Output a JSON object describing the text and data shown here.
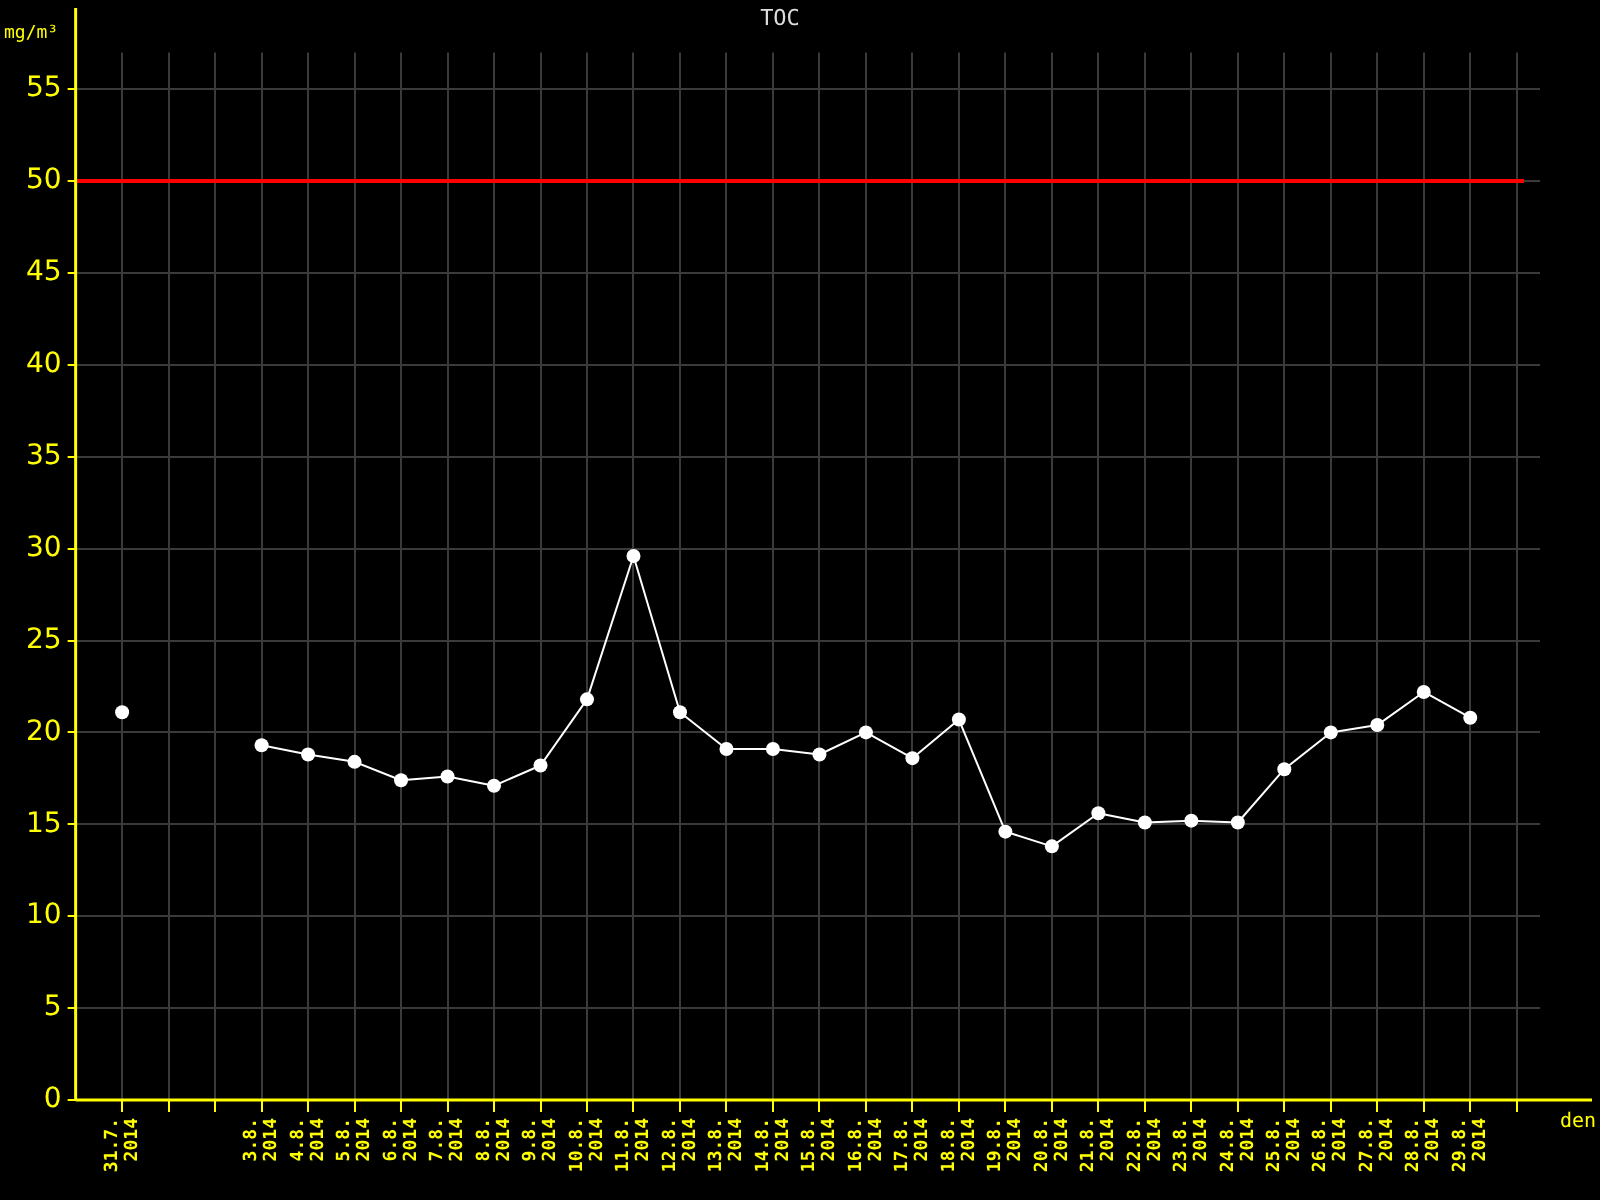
{
  "chart_data": {
    "type": "line",
    "title": "TOC",
    "xlabel": "den",
    "ylabel": "mg/m³",
    "x": [
      "2014-07-31",
      "2014-08-01",
      "2014-08-02",
      "2014-08-03",
      "2014-08-04",
      "2014-08-05",
      "2014-08-06",
      "2014-08-07",
      "2014-08-08",
      "2014-08-09",
      "2014-08-10",
      "2014-08-11",
      "2014-08-12",
      "2014-08-13",
      "2014-08-14",
      "2014-08-15",
      "2014-08-16",
      "2014-08-17",
      "2014-08-18",
      "2014-08-19",
      "2014-08-20",
      "2014-08-21",
      "2014-08-22",
      "2014-08-23",
      "2014-08-24",
      "2014-08-25",
      "2014-08-26",
      "2014-08-27",
      "2014-08-28",
      "2014-08-29"
    ],
    "series": [
      {
        "color": "#ffffff",
        "values": [
          21.1,
          null,
          null,
          19.3,
          18.8,
          18.4,
          17.4,
          17.6,
          17.1,
          18.2,
          21.8,
          29.6,
          21.1,
          19.1,
          19.1,
          18.8,
          20.0,
          18.6,
          20.7,
          14.6,
          13.8,
          15.6,
          15.1,
          15.2,
          15.1,
          18.0,
          20.0,
          20.4,
          22.2,
          20.8
        ]
      }
    ],
    "marker": "circle",
    "line_style": "solid",
    "grid": true,
    "legend": false,
    "xlim": [
      "2014-07-30",
      "2014-08-30T12:00"
    ],
    "xticks": [
      {
        "value": "2014-07-31",
        "label": "31.7. 2014"
      },
      {
        "value": "2014-08-01",
        "label": null
      },
      {
        "value": "2014-08-02",
        "label": null
      },
      {
        "value": "2014-08-03",
        "label": "3.8. 2014"
      },
      {
        "value": "2014-08-04",
        "label": "4.8. 2014"
      },
      {
        "value": "2014-08-05",
        "label": "5.8. 2014"
      },
      {
        "value": "2014-08-06",
        "label": "6.8. 2014"
      },
      {
        "value": "2014-08-07",
        "label": "7.8. 2014"
      },
      {
        "value": "2014-08-08",
        "label": "8.8. 2014"
      },
      {
        "value": "2014-08-09",
        "label": "9.8. 2014"
      },
      {
        "value": "2014-08-10",
        "label": "10.8. 2014"
      },
      {
        "value": "2014-08-11",
        "label": "11.8. 2014"
      },
      {
        "value": "2014-08-12",
        "label": "12.8. 2014"
      },
      {
        "value": "2014-08-13",
        "label": "13.8. 2014"
      },
      {
        "value": "2014-08-14",
        "label": "14.8. 2014"
      },
      {
        "value": "2014-08-15",
        "label": "15.8. 2014"
      },
      {
        "value": "2014-08-16",
        "label": "16.8. 2014"
      },
      {
        "value": "2014-08-17",
        "label": "17.8. 2014"
      },
      {
        "value": "2014-08-18",
        "label": "18.8. 2014"
      },
      {
        "value": "2014-08-19",
        "label": "19.8. 2014"
      },
      {
        "value": "2014-08-20",
        "label": "20.8. 2014"
      },
      {
        "value": "2014-08-21",
        "label": "21.8. 2014"
      },
      {
        "value": "2014-08-22",
        "label": "22.8. 2014"
      },
      {
        "value": "2014-08-23",
        "label": "23.8. 2014"
      },
      {
        "value": "2014-08-24",
        "label": "24.8. 2014"
      },
      {
        "value": "2014-08-25",
        "label": "25.8. 2014"
      },
      {
        "value": "2014-08-26",
        "label": "26.8. 2014"
      },
      {
        "value": "2014-08-27",
        "label": "27.8. 2014"
      },
      {
        "value": "2014-08-28",
        "label": "28.8. 2014"
      },
      {
        "value": "2014-08-29",
        "label": "29.8. 2014"
      },
      {
        "value": "2014-08-30",
        "label": null
      }
    ],
    "ylim": [
      0,
      57
    ],
    "yticks": [
      0,
      5,
      10,
      15,
      20,
      25,
      30,
      35,
      40,
      45,
      50,
      55
    ],
    "ref_lines": [
      {
        "axis": "y",
        "value": 50,
        "color": "#ff0000"
      }
    ]
  }
}
